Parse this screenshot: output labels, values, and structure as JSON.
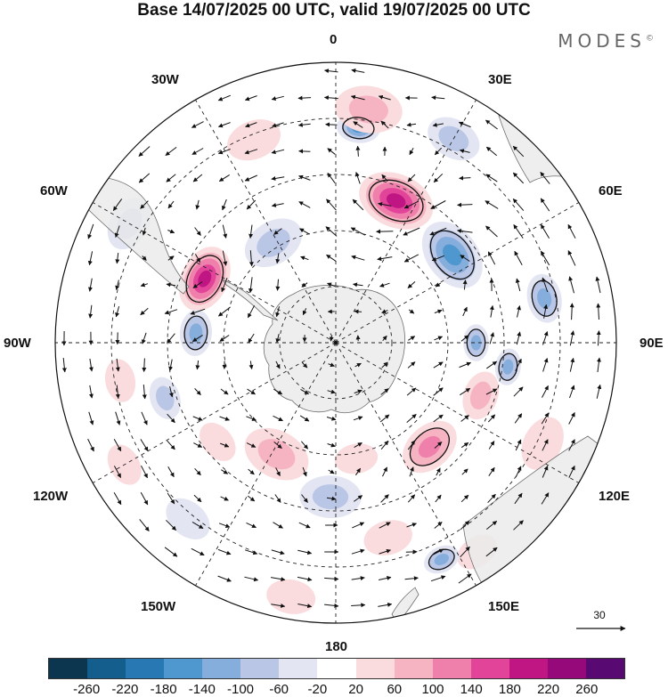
{
  "title": "Base 14/07/2025 00 UTC, valid 19/07/2025 00 UTC",
  "brand": "MODES",
  "brand_mark": "©",
  "longitude_labels": {
    "n0": "0",
    "n30e": "30E",
    "n60e": "60E",
    "n90e": "90E",
    "n120e": "120E",
    "n150e": "150E",
    "n180": "180",
    "n150w": "150W",
    "n120w": "120W",
    "n90w": "90W",
    "n60w": "60W",
    "n30w": "30W"
  },
  "reference_vector": {
    "value": "30"
  },
  "colorbar": {
    "colors": [
      "#0c3550",
      "#145e8e",
      "#2878b4",
      "#4f98cf",
      "#86aedc",
      "#bac6e6",
      "#e3e6f2",
      "#ffffff",
      "#fbdcde",
      "#f6b4c2",
      "#ef7fab",
      "#e2449a",
      "#c01683",
      "#95097a",
      "#590a72"
    ],
    "ticks": [
      "-260",
      "-220",
      "-180",
      "-140",
      "-100",
      "-60",
      "-20",
      "20",
      "60",
      "100",
      "140",
      "180",
      "220",
      "260"
    ]
  },
  "map": {
    "projection": "south-polar-stereographic",
    "land_color": "#ebebeb",
    "anomaly_cells": [
      {
        "theta": 78,
        "r": 0.76,
        "size": 0.16,
        "value": -120
      },
      {
        "theta": 98,
        "r": 0.62,
        "size": 0.12,
        "value": -110
      },
      {
        "theta": 110,
        "r": 0.55,
        "size": 0.16,
        "value": 70
      },
      {
        "theta": 116,
        "r": 0.82,
        "size": 0.18,
        "value": 50
      },
      {
        "theta": 138,
        "r": 0.5,
        "size": 0.2,
        "value": 110
      },
      {
        "theta": 90,
        "r": 0.5,
        "size": 0.12,
        "value": -120
      },
      {
        "theta": 53,
        "r": 0.52,
        "size": 0.24,
        "value": -150
      },
      {
        "theta": 23,
        "r": 0.55,
        "size": 0.25,
        "value": 185
      },
      {
        "theta": 6,
        "r": 0.77,
        "size": 0.14,
        "value": -140
      },
      {
        "theta": 8,
        "r": 0.84,
        "size": 0.22,
        "value": 60
      },
      {
        "theta": 30,
        "r": 0.84,
        "size": 0.18,
        "value": -60
      },
      {
        "theta": -32,
        "r": 0.42,
        "size": 0.2,
        "value": -70
      },
      {
        "theta": -64,
        "r": 0.52,
        "size": 0.22,
        "value": 200
      },
      {
        "theta": -60,
        "r": 0.85,
        "size": 0.18,
        "value": -60
      },
      {
        "theta": -86,
        "r": 0.5,
        "size": 0.15,
        "value": -100
      },
      {
        "theta": -108,
        "r": 0.64,
        "size": 0.14,
        "value": -70
      },
      {
        "theta": -100,
        "r": 0.78,
        "size": 0.14,
        "value": 50
      },
      {
        "theta": -130,
        "r": 0.55,
        "size": 0.14,
        "value": 45
      },
      {
        "theta": -152,
        "r": 0.45,
        "size": 0.22,
        "value": 80
      },
      {
        "theta": -178,
        "r": 0.55,
        "size": 0.2,
        "value": -60
      },
      {
        "theta": 170,
        "r": 0.42,
        "size": 0.14,
        "value": 55
      },
      {
        "theta": 165,
        "r": 0.72,
        "size": 0.16,
        "value": 50
      },
      {
        "theta": -170,
        "r": 0.92,
        "size": 0.16,
        "value": 40
      },
      {
        "theta": 146,
        "r": 0.9,
        "size": 0.14,
        "value": 35
      },
      {
        "theta": 154,
        "r": 0.86,
        "size": 0.12,
        "value": -110
      },
      {
        "theta": -22,
        "r": 0.78,
        "size": 0.18,
        "value": 50
      },
      {
        "theta": -140,
        "r": 0.82,
        "size": 0.16,
        "value": -50
      },
      {
        "theta": -120,
        "r": 0.87,
        "size": 0.14,
        "value": 40
      }
    ]
  }
}
